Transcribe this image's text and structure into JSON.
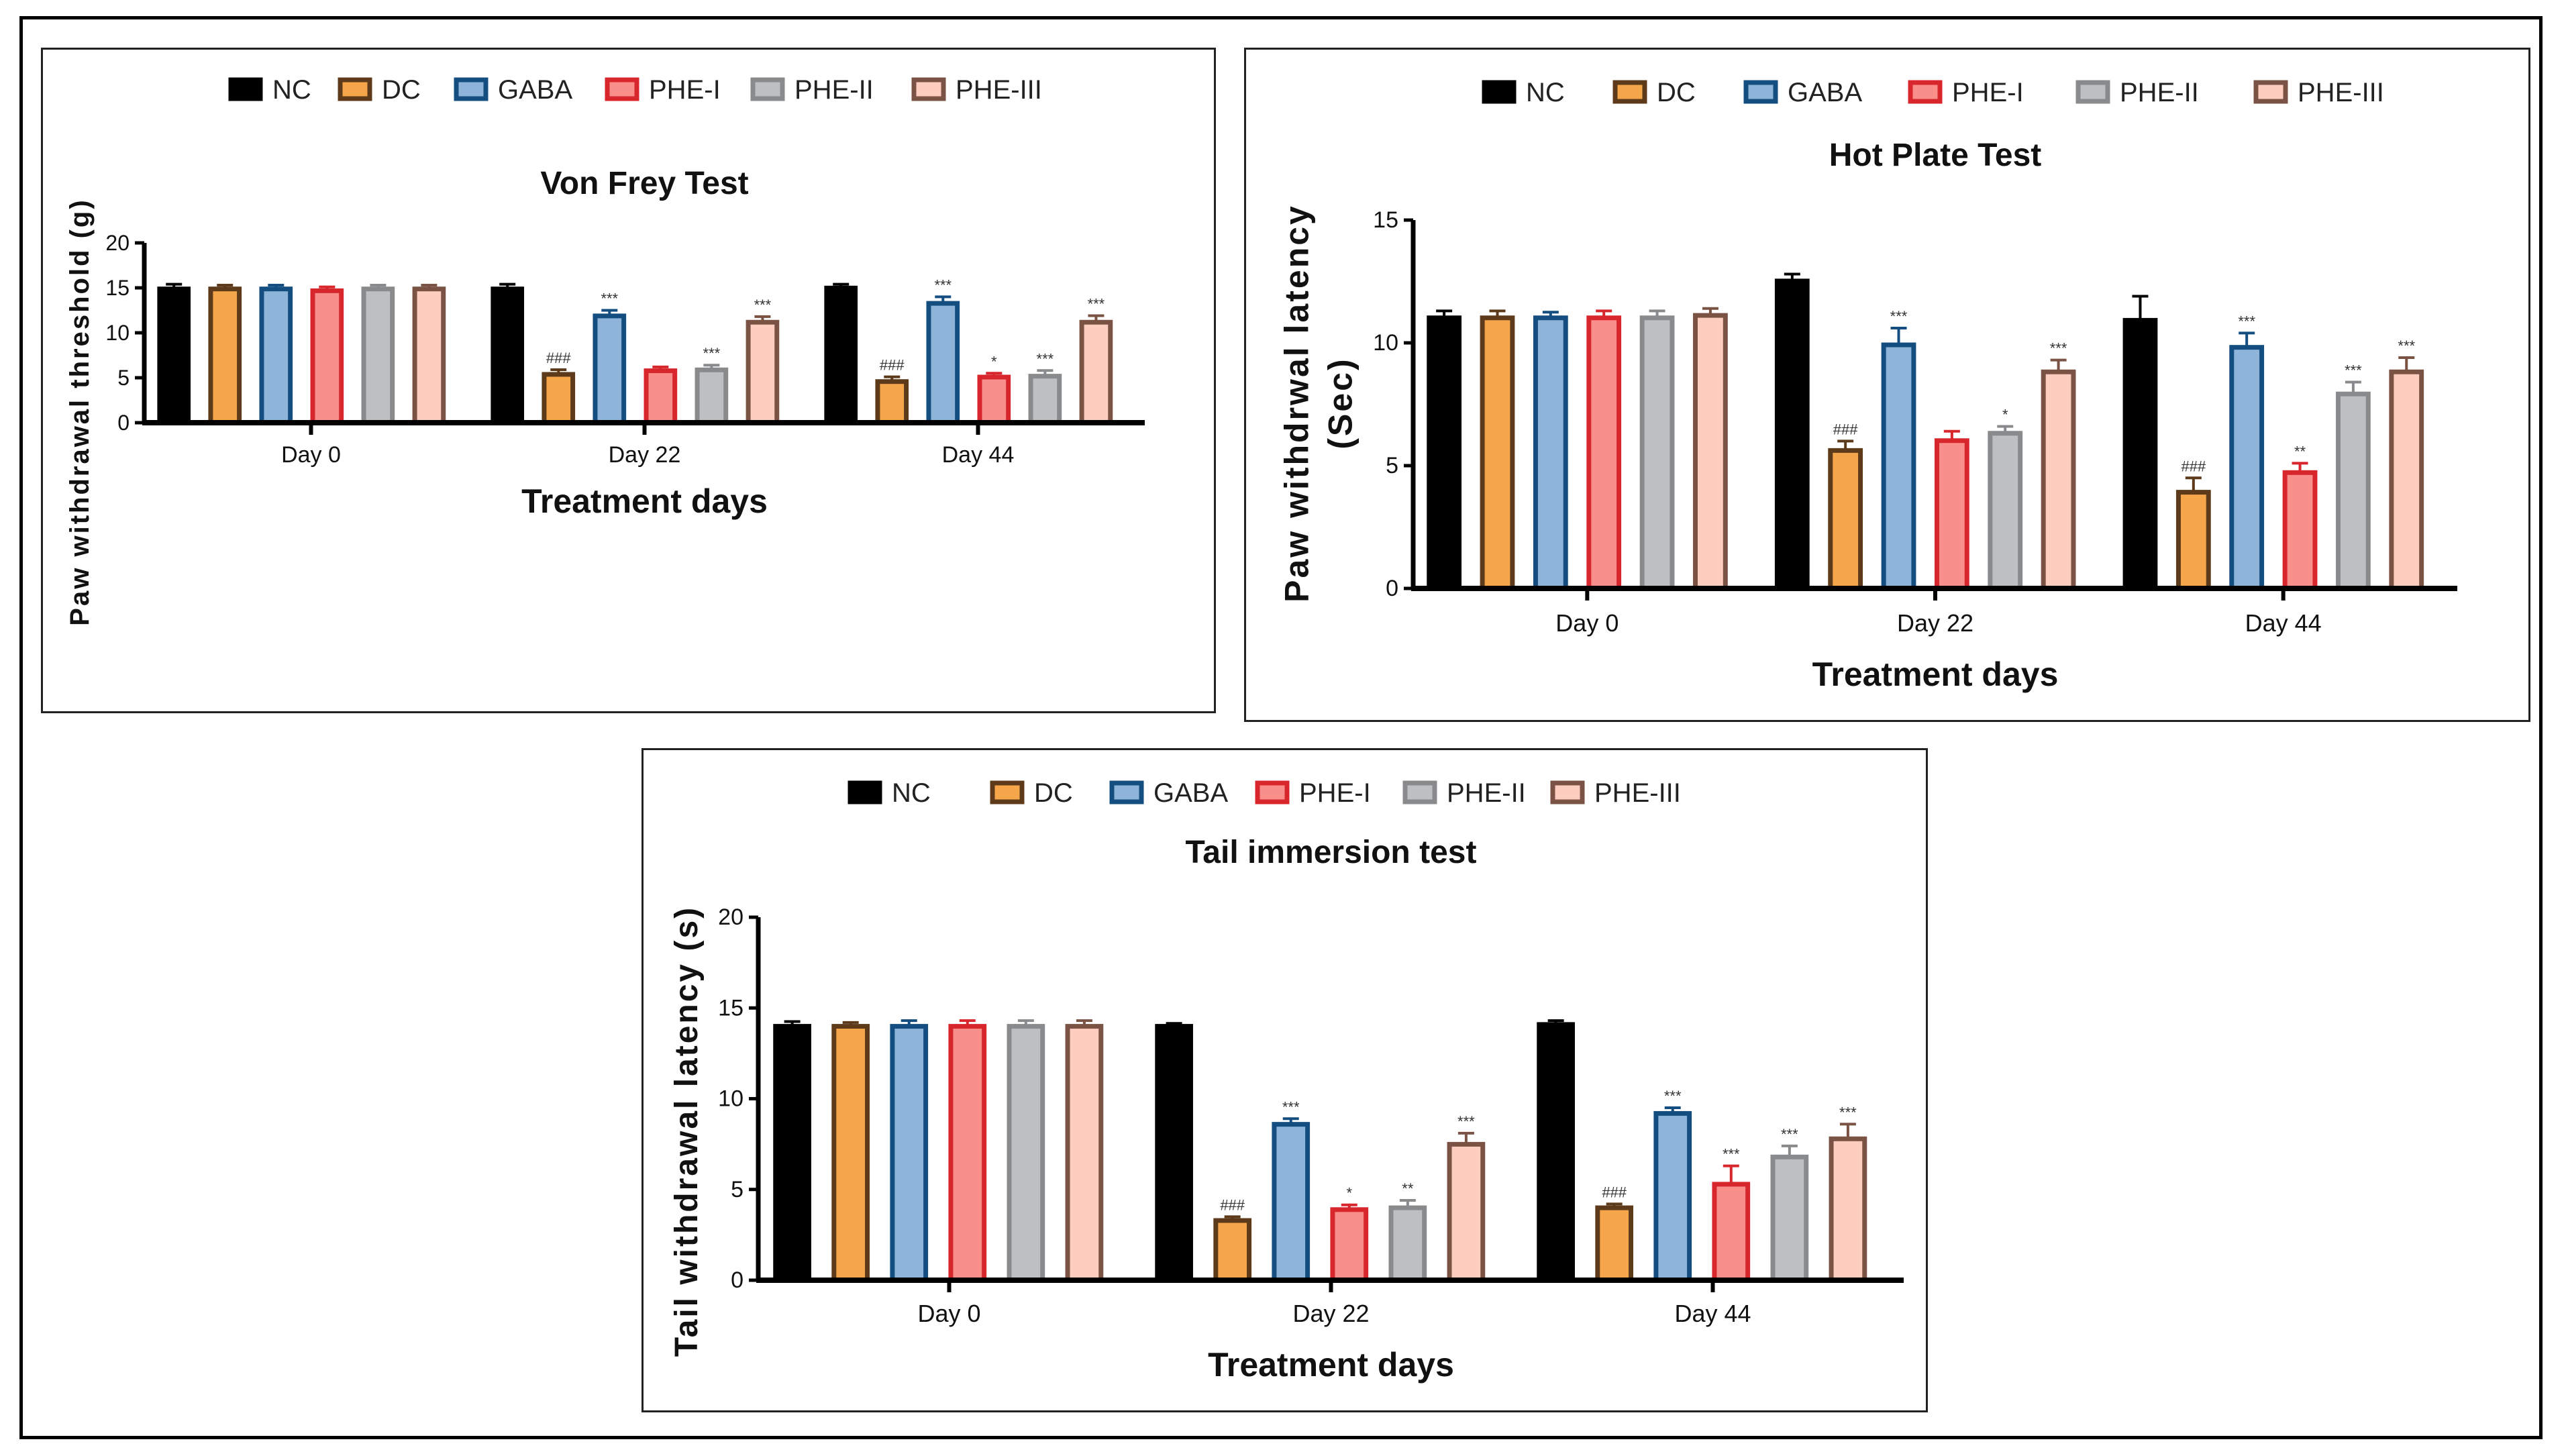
{
  "chart_data": [
    {
      "type": "bar",
      "title": "Von Frey Test",
      "xlabel": "Treatment days",
      "ylabel": [
        "Paw withdrawal threshold (g)"
      ],
      "ylim": [
        0,
        20
      ],
      "yticks": [
        "0",
        "5",
        "10",
        "15",
        "20"
      ],
      "categories": [
        "Day 0",
        "Day 22",
        "Day 44"
      ],
      "legend_position": "top",
      "series": [
        {
          "name": "NC",
          "fill": "#000000",
          "edge": "#000000",
          "values": [
            15.1,
            15.1,
            15.2
          ],
          "errors": [
            0.3,
            0.3,
            0.2
          ],
          "annotations": [
            "",
            "",
            ""
          ]
        },
        {
          "name": "DC",
          "fill": "#F5A54A",
          "edge": "#5C3A1A",
          "values": [
            15.1,
            5.6,
            4.8
          ],
          "errors": [
            0.2,
            0.3,
            0.3
          ],
          "annotations": [
            "",
            "###",
            "###"
          ]
        },
        {
          "name": "GABA",
          "fill": "#8FB4D9",
          "edge": "#144E80",
          "values": [
            15.1,
            12.1,
            13.5
          ],
          "errors": [
            0.2,
            0.4,
            0.5
          ],
          "annotations": [
            "",
            "***",
            "***"
          ]
        },
        {
          "name": "PHE-I",
          "fill": "#F98F8B",
          "edge": "#D8262D",
          "values": [
            14.9,
            6.0,
            5.3
          ],
          "errors": [
            0.2,
            0.2,
            0.2
          ],
          "annotations": [
            "",
            "",
            "*"
          ]
        },
        {
          "name": "PHE-II",
          "fill": "#BDBFC1",
          "edge": "#888A8C",
          "values": [
            15.1,
            6.1,
            5.4
          ],
          "errors": [
            0.2,
            0.3,
            0.4
          ],
          "annotations": [
            "",
            "***",
            "***"
          ]
        },
        {
          "name": "PHE-III",
          "fill": "#FDCDBF",
          "edge": "#7A5344",
          "values": [
            15.1,
            11.4,
            11.4
          ],
          "errors": [
            0.2,
            0.4,
            0.5
          ],
          "annotations": [
            "",
            "***",
            "***"
          ]
        }
      ]
    },
    {
      "type": "bar",
      "title": "Hot Plate Test",
      "xlabel": "Treatment days",
      "ylabel": [
        "Paw withdrwal latency",
        "(Sec)"
      ],
      "ylim": [
        0,
        15
      ],
      "yticks": [
        "0",
        "5",
        "10",
        "15"
      ],
      "categories": [
        "Day 0",
        "Day 22",
        "Day 44"
      ],
      "legend_position": "top",
      "series": [
        {
          "name": "NC",
          "fill": "#000000",
          "edge": "#000000",
          "values": [
            11.1,
            12.6,
            11.0
          ],
          "errors": [
            0.2,
            0.2,
            0.9
          ],
          "annotations": [
            "",
            "",
            ""
          ]
        },
        {
          "name": "DC",
          "fill": "#F5A54A",
          "edge": "#5C3A1A",
          "values": [
            11.1,
            5.7,
            4.0
          ],
          "errors": [
            0.2,
            0.3,
            0.5
          ],
          "annotations": [
            "",
            "###",
            "###"
          ]
        },
        {
          "name": "GABA",
          "fill": "#8FB4D9",
          "edge": "#144E80",
          "values": [
            11.1,
            10.0,
            9.9
          ],
          "errors": [
            0.15,
            0.6,
            0.5
          ],
          "annotations": [
            "",
            "***",
            "***"
          ]
        },
        {
          "name": "PHE-I",
          "fill": "#F98F8B",
          "edge": "#D8262D",
          "values": [
            11.1,
            6.1,
            4.8
          ],
          "errors": [
            0.2,
            0.3,
            0.3
          ],
          "annotations": [
            "",
            "",
            "**"
          ]
        },
        {
          "name": "PHE-II",
          "fill": "#BDBFC1",
          "edge": "#888A8C",
          "values": [
            11.1,
            6.4,
            8.0
          ],
          "errors": [
            0.2,
            0.2,
            0.4
          ],
          "annotations": [
            "",
            "*",
            "***"
          ]
        },
        {
          "name": "PHE-III",
          "fill": "#FDCDBF",
          "edge": "#7A5344",
          "values": [
            11.2,
            8.9,
            8.9
          ],
          "errors": [
            0.2,
            0.4,
            0.5
          ],
          "annotations": [
            "",
            "***",
            "***"
          ]
        }
      ]
    },
    {
      "type": "bar",
      "title": "Tail immersion test",
      "xlabel": "Treatment days",
      "ylabel": [
        "Tail withdrawal latency (s)"
      ],
      "ylim": [
        0,
        20
      ],
      "yticks": [
        "0",
        "5",
        "10",
        "15",
        "20"
      ],
      "categories": [
        "Day 0",
        "Day 22",
        "Day 44"
      ],
      "legend_position": "top",
      "series": [
        {
          "name": "NC",
          "fill": "#000000",
          "edge": "#000000",
          "values": [
            14.1,
            14.1,
            14.2
          ],
          "errors": [
            0.15,
            0.05,
            0.1
          ],
          "annotations": [
            "",
            "",
            ""
          ]
        },
        {
          "name": "DC",
          "fill": "#F5A54A",
          "edge": "#5C3A1A",
          "values": [
            14.1,
            3.4,
            4.1
          ],
          "errors": [
            0.1,
            0.1,
            0.1
          ],
          "annotations": [
            "",
            "###",
            "###"
          ]
        },
        {
          "name": "GABA",
          "fill": "#8FB4D9",
          "edge": "#144E80",
          "values": [
            14.1,
            8.7,
            9.3
          ],
          "errors": [
            0.2,
            0.2,
            0.2
          ],
          "annotations": [
            "",
            "***",
            "***"
          ]
        },
        {
          "name": "PHE-I",
          "fill": "#F98F8B",
          "edge": "#D8262D",
          "values": [
            14.1,
            4.0,
            5.4
          ],
          "errors": [
            0.2,
            0.15,
            0.9
          ],
          "annotations": [
            "",
            "*",
            "***"
          ]
        },
        {
          "name": "PHE-II",
          "fill": "#BDBFC1",
          "edge": "#888A8C",
          "values": [
            14.1,
            4.1,
            6.9
          ],
          "errors": [
            0.2,
            0.3,
            0.5
          ],
          "annotations": [
            "",
            "**",
            "***"
          ]
        },
        {
          "name": "PHE-III",
          "fill": "#FDCDBF",
          "edge": "#7A5344",
          "values": [
            14.1,
            7.6,
            7.9
          ],
          "errors": [
            0.2,
            0.5,
            0.7
          ],
          "annotations": [
            "",
            "***",
            "***"
          ]
        }
      ]
    }
  ]
}
